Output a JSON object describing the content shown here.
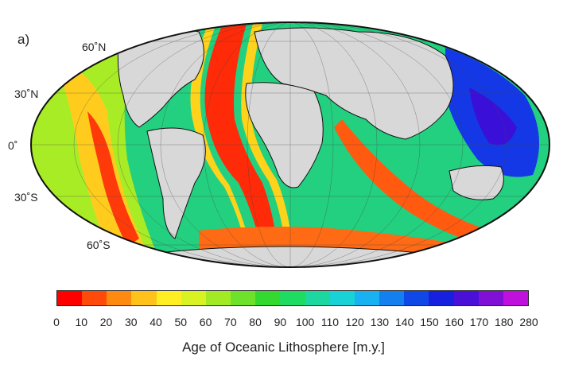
{
  "panel_label": "a)",
  "latitude_labels": [
    "60˚N",
    "30˚N",
    "0˚",
    "30˚S",
    "60˚S"
  ],
  "colorbar": {
    "title": "Age of Oceanic Lithosphere [m.y.]",
    "ticks": [
      "0",
      "10",
      "20",
      "30",
      "40",
      "50",
      "60",
      "70",
      "80",
      "90",
      "100",
      "110",
      "120",
      "130",
      "140",
      "150",
      "160",
      "170",
      "180",
      "280"
    ],
    "colors": [
      "#ff0000",
      "#ff4a0a",
      "#ff8a10",
      "#ffc21a",
      "#ffee22",
      "#d8f222",
      "#a2ea24",
      "#6ee22a",
      "#33d92e",
      "#1edc62",
      "#1cd8a0",
      "#18d2d6",
      "#18b2f2",
      "#1480f0",
      "#1048e8",
      "#1820e0",
      "#4a10d8",
      "#8010d6",
      "#c010de"
    ],
    "land_color": "#d8d8d8",
    "shelf_color": "#7a7a7a"
  }
}
